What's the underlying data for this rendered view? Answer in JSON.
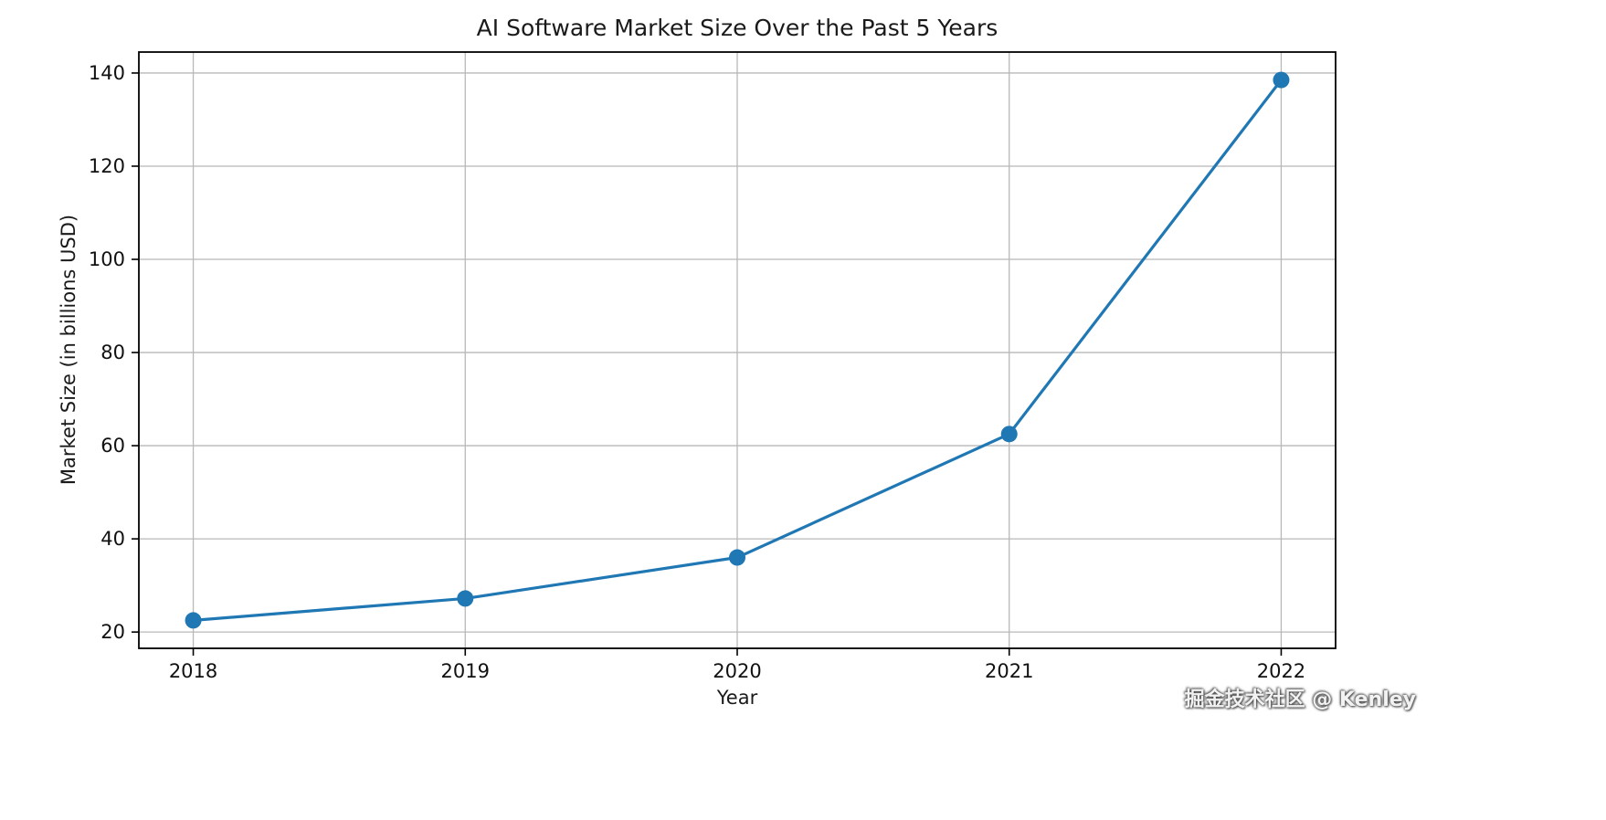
{
  "chart_data": {
    "type": "line",
    "title": "AI Software Market Size Over the Past 5 Years",
    "xlabel": "Year",
    "ylabel": "Market Size (in billions USD)",
    "categories": [
      "2018",
      "2019",
      "2020",
      "2021",
      "2022"
    ],
    "series": [
      {
        "name": "Market Size",
        "values": [
          22.5,
          27.2,
          36.0,
          62.5,
          138.5
        ]
      }
    ],
    "ylim": [
      16.5,
      144.5
    ],
    "yticks": [
      20,
      40,
      60,
      80,
      100,
      120,
      140
    ],
    "grid": true,
    "legend": "none",
    "line_color": "#1f77b4",
    "grid_color": "#b8b8b8",
    "axis_color": "#000000",
    "marker": "circle"
  },
  "watermark": {
    "text": "掘金技术社区 @ Kenley"
  }
}
